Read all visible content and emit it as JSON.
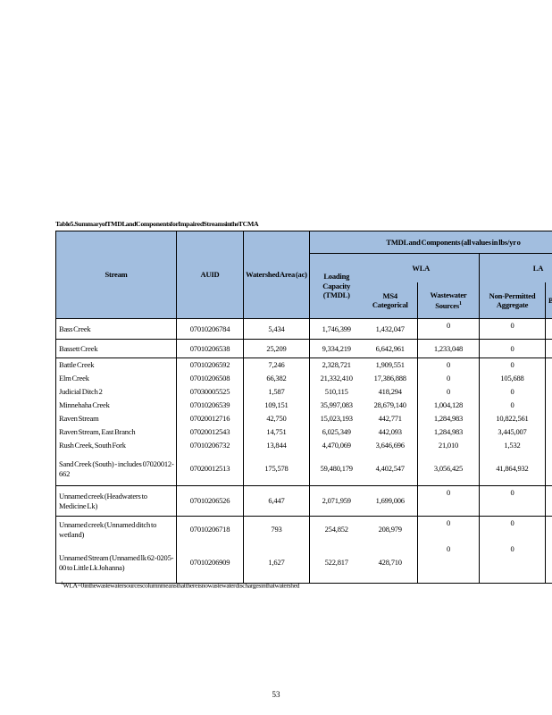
{
  "page": {
    "title": "Table 5. Summary of TMDL and Components for Impaired Streams in the TCMA",
    "footnote_sup": "1",
    "footnote_text": "WLA=0 in the wastewater sources column means that there is no wastewater discharges in that watershed",
    "page_number": "53"
  },
  "table": {
    "group_header": "TMDL and Components (all values in lbs/yr o",
    "headers": {
      "stream": "Stream",
      "auid": "AUID",
      "watershed_area": "Watershed Area (ac)",
      "loading_capacity": "Loading Capacity (TMDL)",
      "wla": "WLA",
      "ms4_categorical": "MS4 Categorical",
      "wastewater_sources": "Wastewater Sources",
      "wastewater_sources_sup": "1",
      "la": "LA",
      "non_permitted_aggregate": "Non-Permitted Aggregate",
      "clipped_column": "B"
    },
    "rows": [
      {
        "stream": "Bass Creek",
        "auid": "07010206784",
        "watershed_area_ac": "5,434",
        "loading_capacity_tmdl": "1,746,399",
        "ms4_categorical": "1,432,047",
        "wastewater_sources": "0",
        "non_permitted_aggregate": "0",
        "clipped": "",
        "separator_above": false,
        "zeros_top": true
      },
      {
        "stream": "Bassett Creek",
        "auid": "07010206538",
        "watershed_area_ac": "25,209",
        "loading_capacity_tmdl": "9,334,219",
        "ms4_categorical": "6,642,961",
        "wastewater_sources": "1,233,048",
        "non_permitted_aggregate": "0",
        "clipped": "",
        "separator_above": true,
        "zeros_top": false
      },
      {
        "stream": "Battle Creek",
        "auid": "07010206592",
        "watershed_area_ac": "7,246",
        "loading_capacity_tmdl": "2,328,721",
        "ms4_categorical": "1,909,551",
        "wastewater_sources": "0",
        "non_permitted_aggregate": "0",
        "clipped": "",
        "separator_above": true,
        "zeros_top": false
      },
      {
        "stream": "Elm Creek",
        "auid": "07010206508",
        "watershed_area_ac": "66,382",
        "loading_capacity_tmdl": "21,332,410",
        "ms4_categorical": "17,386,888",
        "wastewater_sources": "0",
        "non_permitted_aggregate": "105,688",
        "clipped": "",
        "separator_above": false,
        "zeros_top": false
      },
      {
        "stream": "Judicial Ditch 2",
        "auid": "07030005525",
        "watershed_area_ac": "1,587",
        "loading_capacity_tmdl": "510,115",
        "ms4_categorical": "418,294",
        "wastewater_sources": "0",
        "non_permitted_aggregate": "0",
        "clipped": "",
        "separator_above": false,
        "zeros_top": false
      },
      {
        "stream": "Minnehaha Creek",
        "auid": "07010206539",
        "watershed_area_ac": "109,151",
        "loading_capacity_tmdl": "35,997,083",
        "ms4_categorical": "28,679,140",
        "wastewater_sources": "1,004,128",
        "non_permitted_aggregate": "0",
        "clipped": "",
        "separator_above": false,
        "zeros_top": false
      },
      {
        "stream": "Raven Stream",
        "auid": "07020012716",
        "watershed_area_ac": "42,750",
        "loading_capacity_tmdl": "15,023,193",
        "ms4_categorical": "442,771",
        "wastewater_sources": "1,284,983",
        "non_permitted_aggregate": "10,822,561",
        "clipped": "",
        "separator_above": false,
        "zeros_top": false
      },
      {
        "stream": "Raven Stream, East Branch",
        "auid": "07020012543",
        "watershed_area_ac": "14,751",
        "loading_capacity_tmdl": "6,025,349",
        "ms4_categorical": "442,093",
        "wastewater_sources": "1,284,983",
        "non_permitted_aggregate": "3,445,007",
        "clipped": "",
        "separator_above": false,
        "zeros_top": false
      },
      {
        "stream": "Rush Creek, South Fork",
        "auid": "07010206732",
        "watershed_area_ac": "13,844",
        "loading_capacity_tmdl": "4,470,069",
        "ms4_categorical": "3,646,696",
        "wastewater_sources": "21,010",
        "non_permitted_aggregate": "1,532",
        "clipped": "",
        "separator_above": false,
        "zeros_top": false
      },
      {
        "stream": "Sand Creek (South) - includes 07020012-662",
        "auid": "07020012513",
        "watershed_area_ac": "175,578",
        "loading_capacity_tmdl": "59,480,179",
        "ms4_categorical": "4,402,547",
        "wastewater_sources": "3,056,425",
        "non_permitted_aggregate": "41,864,932",
        "clipped": "",
        "separator_above": false,
        "zeros_top": false
      },
      {
        "stream": "Unnamed creek (Headwaters to Medicine Lk)",
        "auid": "07010206526",
        "watershed_area_ac": "6,447",
        "loading_capacity_tmdl": "2,071,959",
        "ms4_categorical": "1,699,006",
        "wastewater_sources": "0",
        "non_permitted_aggregate": "0",
        "clipped": "",
        "separator_above": true,
        "zeros_top": true
      },
      {
        "stream": "Unnamed creek (Unnamed ditch to wetland)",
        "auid": "07010206718",
        "watershed_area_ac": "793",
        "loading_capacity_tmdl": "254,852",
        "ms4_categorical": "208,979",
        "wastewater_sources": "0",
        "non_permitted_aggregate": "0",
        "clipped": "",
        "separator_above": true,
        "zeros_top": true
      },
      {
        "stream": "Unnamed Stream (Unnamed lk 62-0205-00 to Little Lk Johanna)",
        "auid": "07010206909",
        "watershed_area_ac": "1,627",
        "loading_capacity_tmdl": "522,817",
        "ms4_categorical": "428,710",
        "wastewater_sources": "0",
        "non_permitted_aggregate": "0",
        "clipped": "",
        "separator_above": false,
        "zeros_top": true
      }
    ]
  },
  "colors": {
    "header_bg": "#a2bedf",
    "border": "#000000",
    "text": "#000000",
    "page_bg": "#ffffff"
  }
}
